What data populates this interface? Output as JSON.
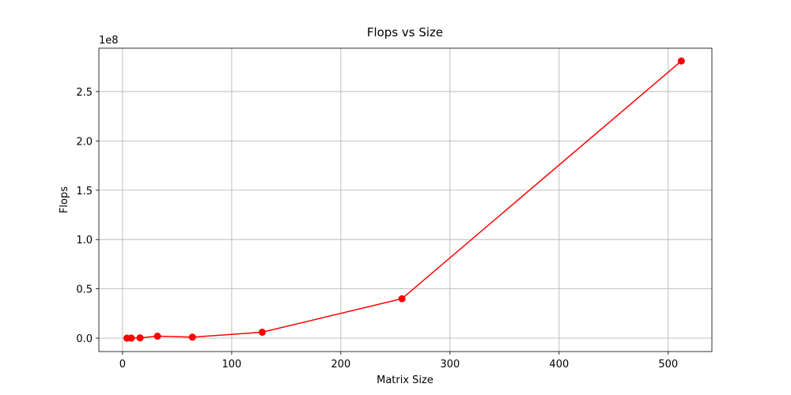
{
  "chart_data": {
    "type": "line",
    "title": "Flops vs Size",
    "x_label": "Matrix Size",
    "y_label": "Flops",
    "y_offset_label": "1e8",
    "x": [
      4,
      8,
      16,
      32,
      64,
      128,
      256,
      512
    ],
    "values": [
      10000,
      80000,
      300000,
      2000000,
      1000000,
      6000000,
      40000000,
      281000000
    ],
    "color": "#ff0000",
    "marker": "o",
    "xlim": [
      -21.7,
      540
    ],
    "xticks": [
      0,
      100,
      200,
      300,
      400,
      500
    ],
    "ylim": [
      -13600000,
      294000000
    ],
    "yticks": [
      {
        "value": 0,
        "label": "0.0"
      },
      {
        "value": 50000000,
        "label": "0.5"
      },
      {
        "value": 100000000,
        "label": "1.0"
      },
      {
        "value": 150000000,
        "label": "1.5"
      },
      {
        "value": 200000000,
        "label": "2.0"
      },
      {
        "value": 250000000,
        "label": "2.5"
      }
    ],
    "grid": true
  }
}
